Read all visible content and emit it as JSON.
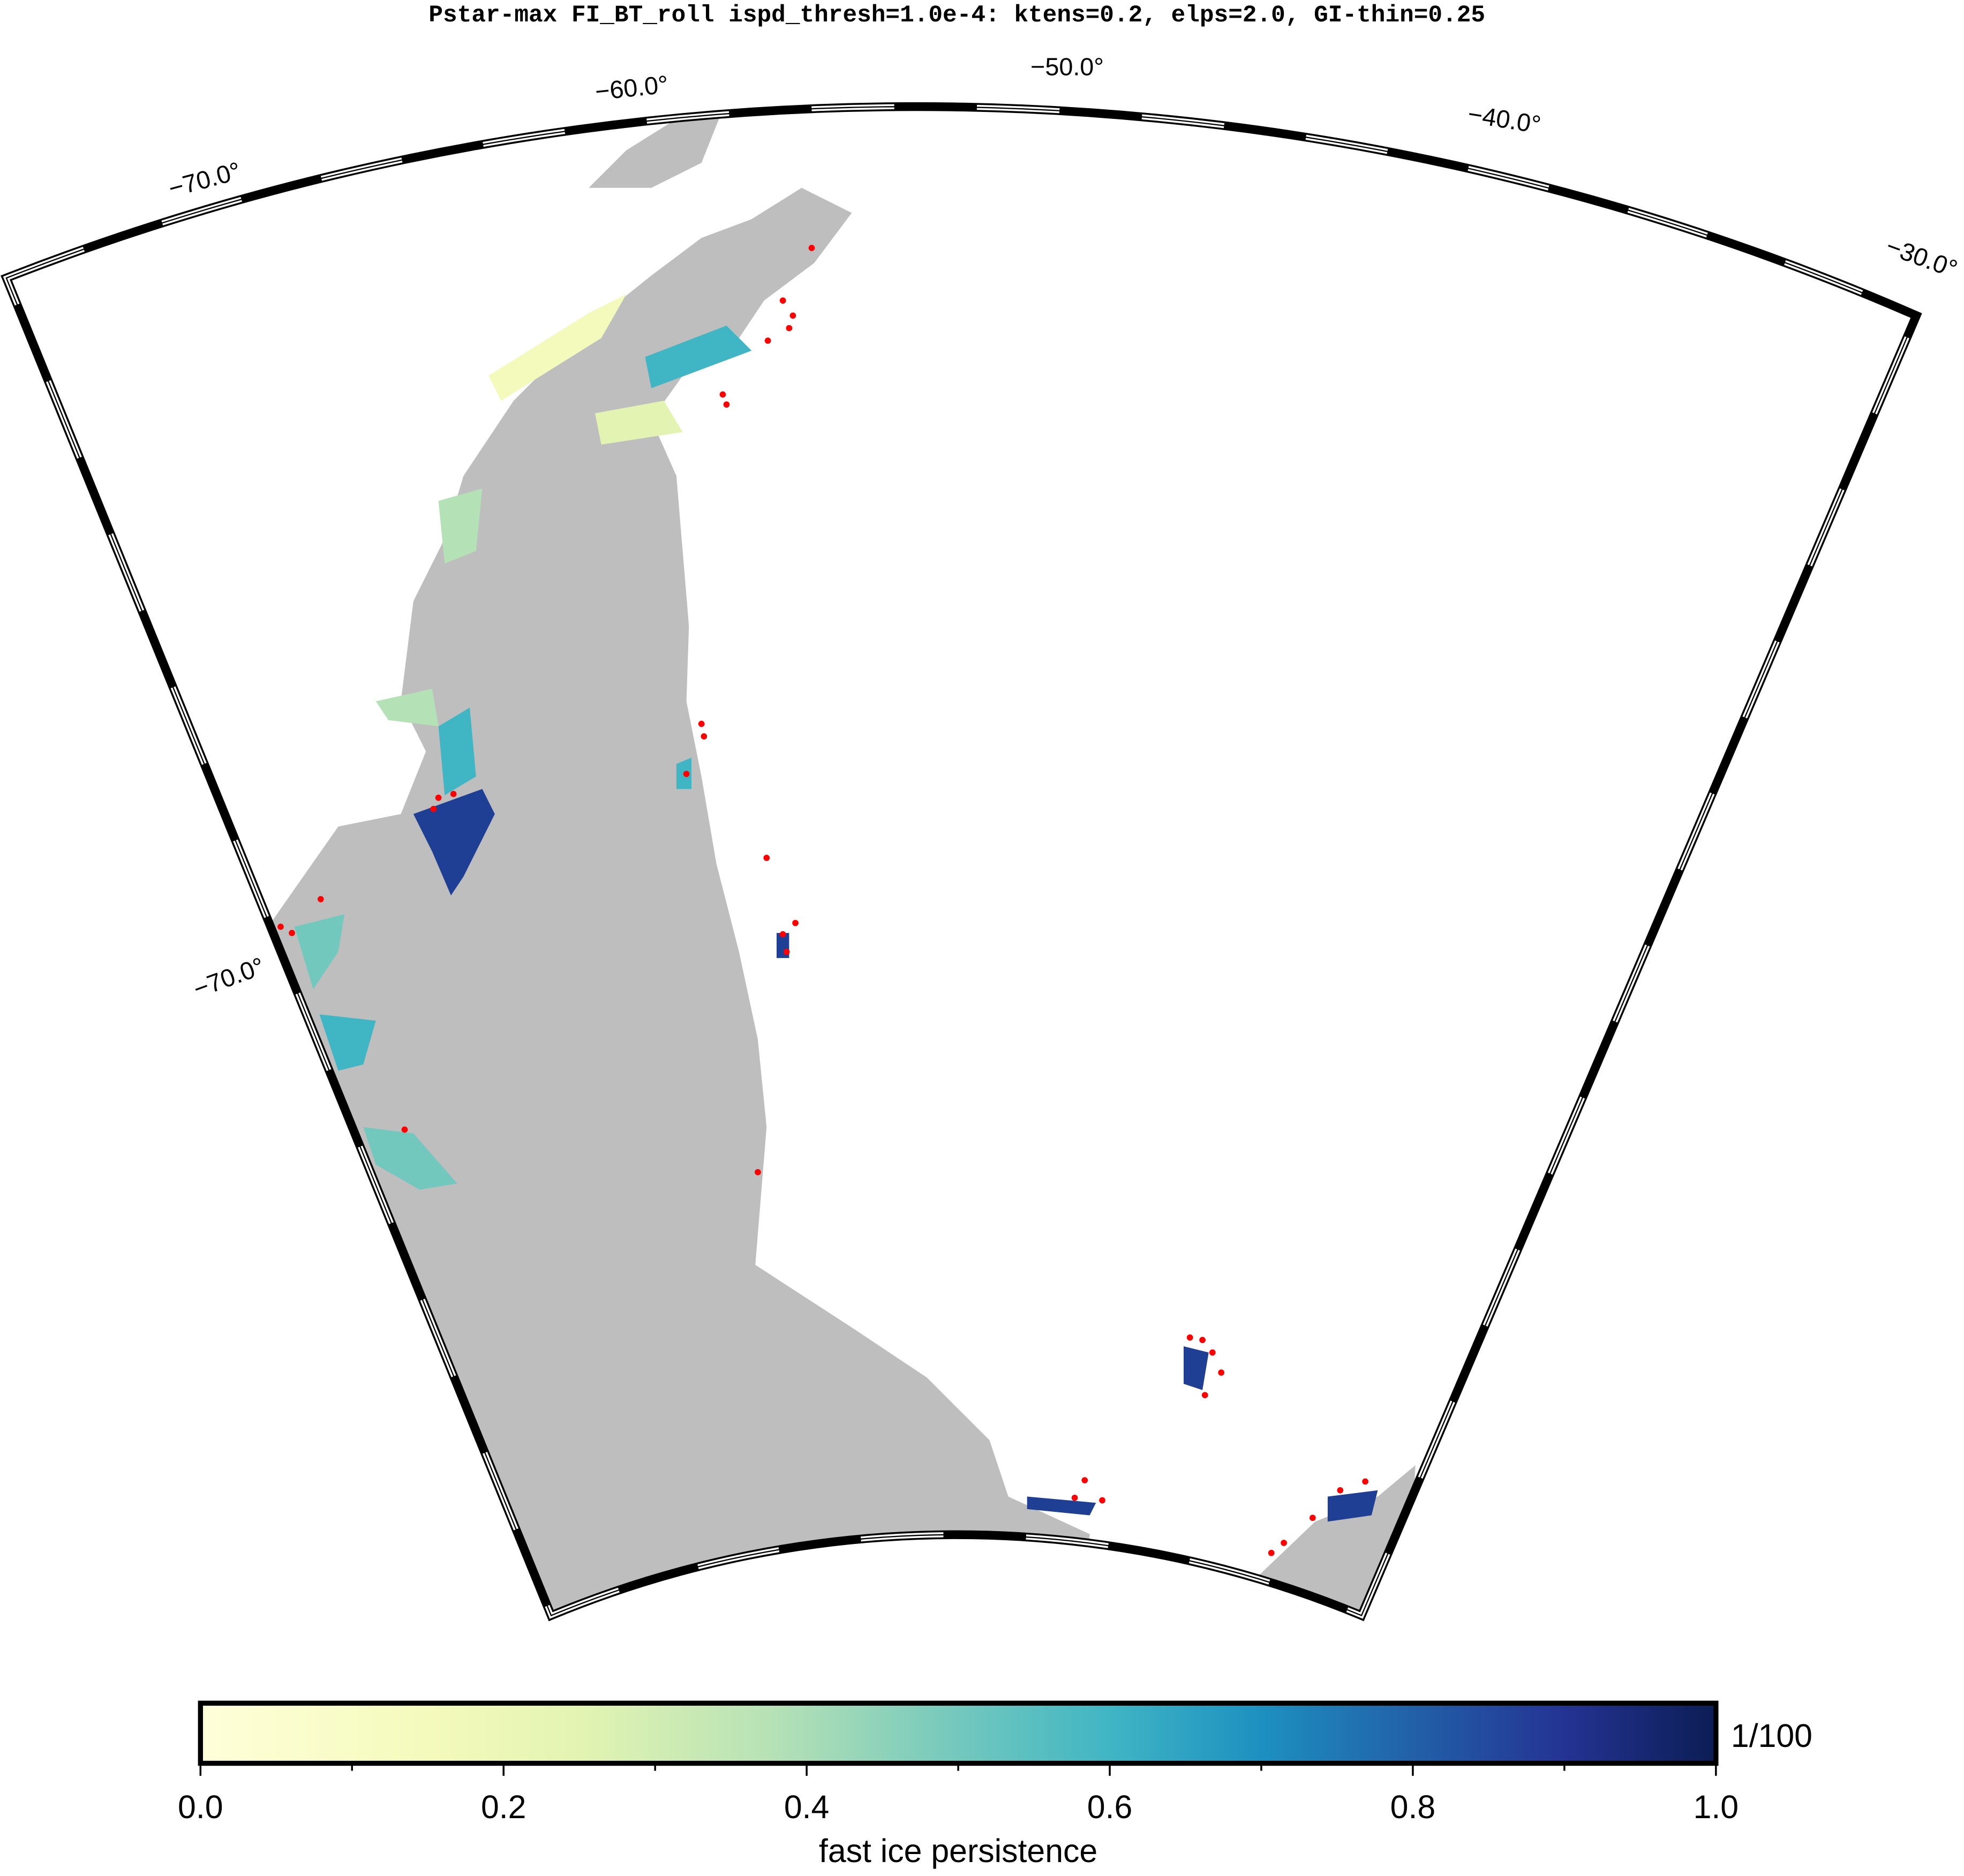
{
  "title": "Pstar-max FI_BT_roll ispd_thresh=1.0e-4: ktens=0.2, elps=2.0, GI-thin=0.25",
  "map": {
    "longitude_labels": [
      "−70.0°",
      "−60.0°",
      "−50.0°",
      "−40.0°",
      "−30.0°"
    ],
    "latitude_labels": [
      "−70.0°"
    ]
  },
  "colorbar": {
    "label": "fast ice persistence",
    "unit_label": "1/100",
    "lim": [
      0,
      1
    ],
    "ticks": [
      {
        "value": 0,
        "label": "0.0"
      },
      {
        "value": 0.2,
        "label": "0.2"
      },
      {
        "value": 0.4,
        "label": "0.4"
      },
      {
        "value": 0.6,
        "label": "0.6"
      },
      {
        "value": 0.8,
        "label": "0.8"
      },
      {
        "value": 1,
        "label": "1.0"
      }
    ],
    "minor_ticks": [
      0.1,
      0.3,
      0.5,
      0.7,
      0.9
    ]
  }
}
